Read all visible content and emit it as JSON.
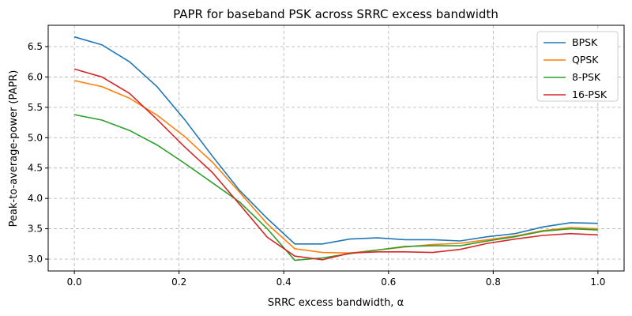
{
  "chart_data": {
    "type": "line",
    "title": "PAPR for baseband PSK across SRRC excess bandwidth",
    "xlabel": "SRRC excess bandwidth, α",
    "ylabel": "Peak-to-average-power (PAPR)",
    "xlim": [
      -0.05,
      1.05
    ],
    "ylim": [
      2.805,
      6.851
    ],
    "xticks": [
      0.0,
      0.2,
      0.4,
      0.6,
      0.8,
      1.0
    ],
    "xtick_labels": [
      "0.0",
      "0.2",
      "0.4",
      "0.6",
      "0.8",
      "1.0"
    ],
    "yticks": [
      3.0,
      3.5,
      4.0,
      4.5,
      5.0,
      5.5,
      6.0,
      6.5
    ],
    "ytick_labels": [
      "3.0",
      "3.5",
      "4.0",
      "4.5",
      "5.0",
      "5.5",
      "6.0",
      "6.5"
    ],
    "grid": true,
    "legend": "top-right",
    "x": [
      0,
      0.0526,
      0.1053,
      0.1579,
      0.2105,
      0.2632,
      0.3158,
      0.3684,
      0.4211,
      0.4737,
      0.5263,
      0.5789,
      0.6316,
      0.6842,
      0.7368,
      0.7895,
      0.8421,
      0.8947,
      0.9474,
      1.0
    ],
    "series": [
      {
        "name": "BPSK",
        "color": "#1f77b4",
        "values": [
          6.66,
          6.53,
          6.25,
          5.84,
          5.3,
          4.7,
          4.13,
          3.67,
          3.25,
          3.25,
          3.33,
          3.35,
          3.32,
          3.32,
          3.3,
          3.37,
          3.42,
          3.53,
          3.6,
          3.59
        ]
      },
      {
        "name": "QPSK",
        "color": "#ff7f0e",
        "values": [
          5.94,
          5.84,
          5.65,
          5.37,
          5.02,
          4.6,
          4.1,
          3.58,
          3.17,
          3.11,
          3.1,
          3.15,
          3.2,
          3.24,
          3.26,
          3.32,
          3.38,
          3.47,
          3.52,
          3.5
        ]
      },
      {
        "name": "8-PSK",
        "color": "#2ca02c",
        "values": [
          5.38,
          5.29,
          5.12,
          4.88,
          4.58,
          4.26,
          3.94,
          3.5,
          2.98,
          3.02,
          3.09,
          3.15,
          3.21,
          3.22,
          3.22,
          3.3,
          3.37,
          3.46,
          3.5,
          3.48
        ]
      },
      {
        "name": "16-PSK",
        "color": "#d62728",
        "values": [
          6.13,
          6.0,
          5.73,
          5.3,
          4.85,
          4.43,
          3.9,
          3.36,
          3.05,
          2.99,
          3.1,
          3.12,
          3.12,
          3.11,
          3.16,
          3.26,
          3.33,
          3.39,
          3.42,
          3.4
        ]
      }
    ]
  }
}
